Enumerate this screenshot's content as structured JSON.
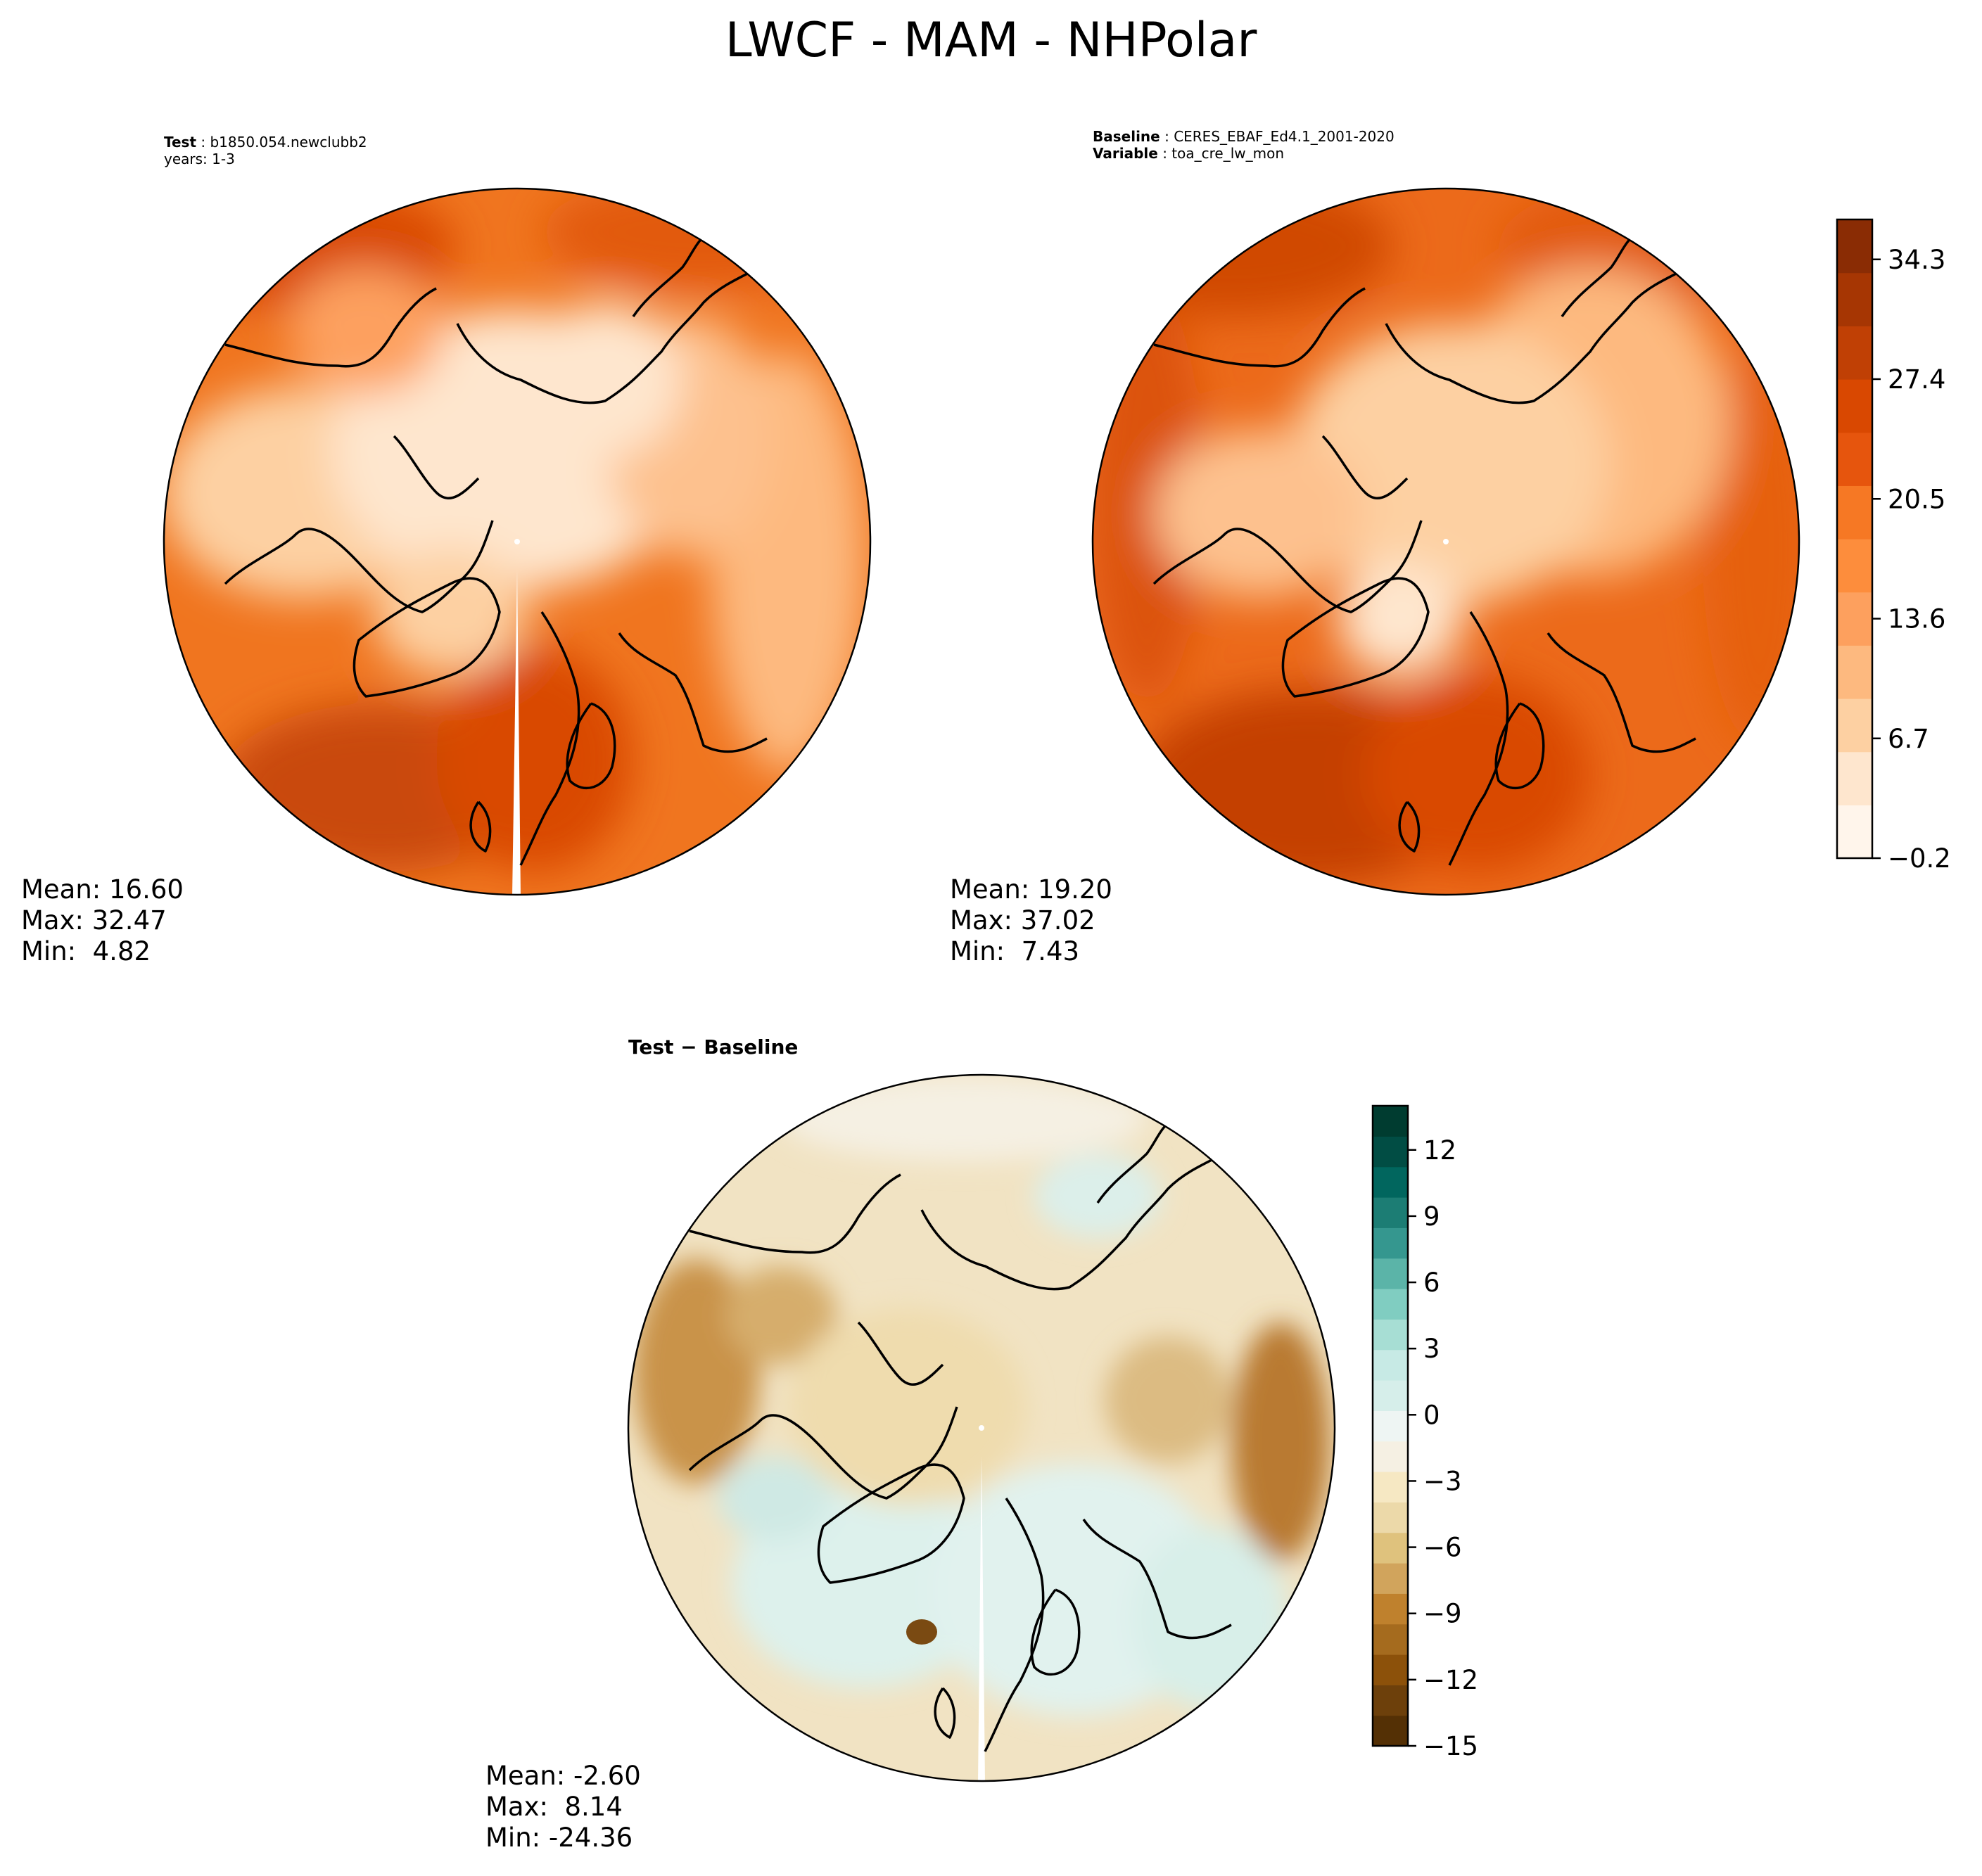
{
  "figure": {
    "title": "LWCF - MAM - NHPolar"
  },
  "panels": {
    "test": {
      "label_bold": "Test",
      "label_value": "b1850.054.newclubb2",
      "years": "years: 1-3",
      "stats": {
        "mean": "Mean: 16.60",
        "max": "Max: 32.47",
        "min": "Min:  4.82"
      }
    },
    "baseline": {
      "label_bold": "Baseline",
      "label_value": "CERES_EBAF_Ed4.1_2001-2020",
      "variable_bold": "Variable",
      "variable_value": "toa_cre_lw_mon",
      "stats": {
        "mean": "Mean: 19.20",
        "max": "Max: 37.02",
        "min": "Min:  7.43"
      }
    },
    "diff": {
      "title": "Test − Baseline",
      "stats": {
        "mean": "Mean: -2.60",
        "max": "Max:  8.14",
        "min": "Min: -24.36"
      }
    }
  },
  "colorbars": {
    "main": {
      "ticks": [
        "−0.2",
        "6.7",
        "13.6",
        "20.5",
        "27.4",
        "34.3"
      ],
      "colors": [
        "#fff5eb",
        "#fee6ce",
        "#fdd0a2",
        "#fdb97f",
        "#fda05e",
        "#fd8d3c",
        "#f67824",
        "#e6550d",
        "#d94801",
        "#c04005",
        "#a63603",
        "#8a2c04"
      ]
    },
    "diff": {
      "ticks": [
        "−15",
        "−12",
        "−9",
        "−6",
        "−3",
        "0",
        "3",
        "6",
        "9",
        "12"
      ],
      "colors": [
        "#543005",
        "#6d400b",
        "#8c510a",
        "#a56b1e",
        "#bf812d",
        "#d1a45c",
        "#dfc27d",
        "#ecd9a9",
        "#f6e8c3",
        "#f5f0e3",
        "#eef5f3",
        "#d6eeea",
        "#c7eae5",
        "#a7ded4",
        "#80cdc1",
        "#5bb4a8",
        "#35978f",
        "#1c7d74",
        "#01665e",
        "#014d44",
        "#003c30"
      ]
    }
  },
  "chart_data": [
    {
      "type": "heatmap",
      "title": "LWCF - MAM - NHPolar",
      "panel": "Test: b1850.054.newclubb2 years: 1-3",
      "projection": "North polar stereographic",
      "colorbar_range": [
        -0.2,
        36.6
      ],
      "stats": {
        "mean": 16.6,
        "max": 32.47,
        "min": 4.82
      }
    },
    {
      "type": "heatmap",
      "panel": "Baseline: CERES_EBAF_Ed4.1_2001-2020, Variable: toa_cre_lw_mon",
      "projection": "North polar stereographic",
      "colorbar_range": [
        -0.2,
        36.6
      ],
      "stats": {
        "mean": 19.2,
        "max": 37.02,
        "min": 7.43
      }
    },
    {
      "type": "heatmap",
      "panel": "Test − Baseline",
      "projection": "North polar stereographic",
      "colorbar_range": [
        -15,
        14
      ],
      "stats": {
        "mean": -2.6,
        "max": 8.14,
        "min": -24.36
      }
    }
  ]
}
